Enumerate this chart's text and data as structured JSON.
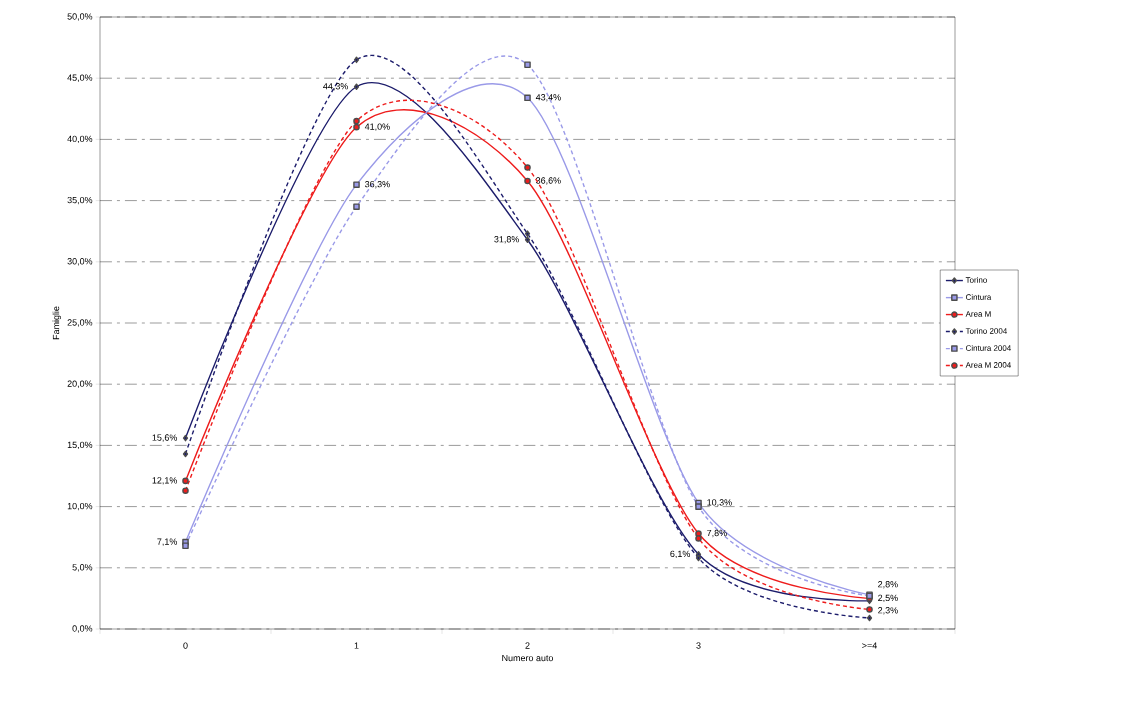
{
  "chart_data": {
    "type": "line",
    "xlabel": "Numero auto",
    "ylabel": "Famiglie",
    "categories": [
      "0",
      "1",
      "2",
      "3",
      ">=4"
    ],
    "series": [
      {
        "name": "Torino",
        "color": "#1c1c6b",
        "marker": "diamond",
        "line_style": "solid",
        "values": [
          15.6,
          44.3,
          31.8,
          6.1,
          2.3
        ],
        "value_labels": [
          "15,6%",
          "44,3%",
          "31,8%",
          "6,1%",
          "2,3%"
        ]
      },
      {
        "name": "Cintura",
        "color": "#9a9ae8",
        "marker": "square",
        "line_style": "solid",
        "values": [
          7.1,
          36.3,
          43.4,
          10.3,
          2.8
        ],
        "value_labels": [
          "7,1%",
          "36,3%",
          "43,4%",
          "10,3%",
          "2,8%"
        ]
      },
      {
        "name": "Area M",
        "color": "#ee1c1c",
        "marker": "circle",
        "line_style": "solid",
        "values": [
          12.1,
          41.0,
          36.6,
          7.8,
          2.5
        ],
        "value_labels": [
          "12,1%",
          "41,0%",
          "36,6%",
          "7,8%",
          "2,5%"
        ]
      },
      {
        "name": "Torino 2004",
        "color": "#1c1c6b",
        "marker": "diamond",
        "line_style": "dashed",
        "values": [
          14.3,
          46.5,
          32.3,
          5.8,
          0.9
        ]
      },
      {
        "name": "Cintura 2004",
        "color": "#9a9ae8",
        "marker": "square",
        "line_style": "dashed",
        "values": [
          6.8,
          34.5,
          46.1,
          10.0,
          2.7
        ]
      },
      {
        "name": "Area M 2004",
        "color": "#ee1c1c",
        "marker": "circle",
        "line_style": "dashed",
        "values": [
          11.3,
          41.5,
          37.7,
          7.4,
          1.6
        ]
      }
    ],
    "ylim": [
      0,
      50
    ],
    "yticks": [
      {
        "value": 0,
        "label": "0,0%"
      },
      {
        "value": 5,
        "label": "5,0%"
      },
      {
        "value": 10,
        "label": "10,0%"
      },
      {
        "value": 15,
        "label": "15,0%"
      },
      {
        "value": 20,
        "label": "20,0%"
      },
      {
        "value": 25,
        "label": "25,0%"
      },
      {
        "value": 30,
        "label": "30,0%"
      },
      {
        "value": 35,
        "label": "35,0%"
      },
      {
        "value": 40,
        "label": "40,0%"
      },
      {
        "value": 45,
        "label": "45,0%"
      },
      {
        "value": 50,
        "label": "50,0%"
      }
    ],
    "grid": "y",
    "legend": "right"
  }
}
